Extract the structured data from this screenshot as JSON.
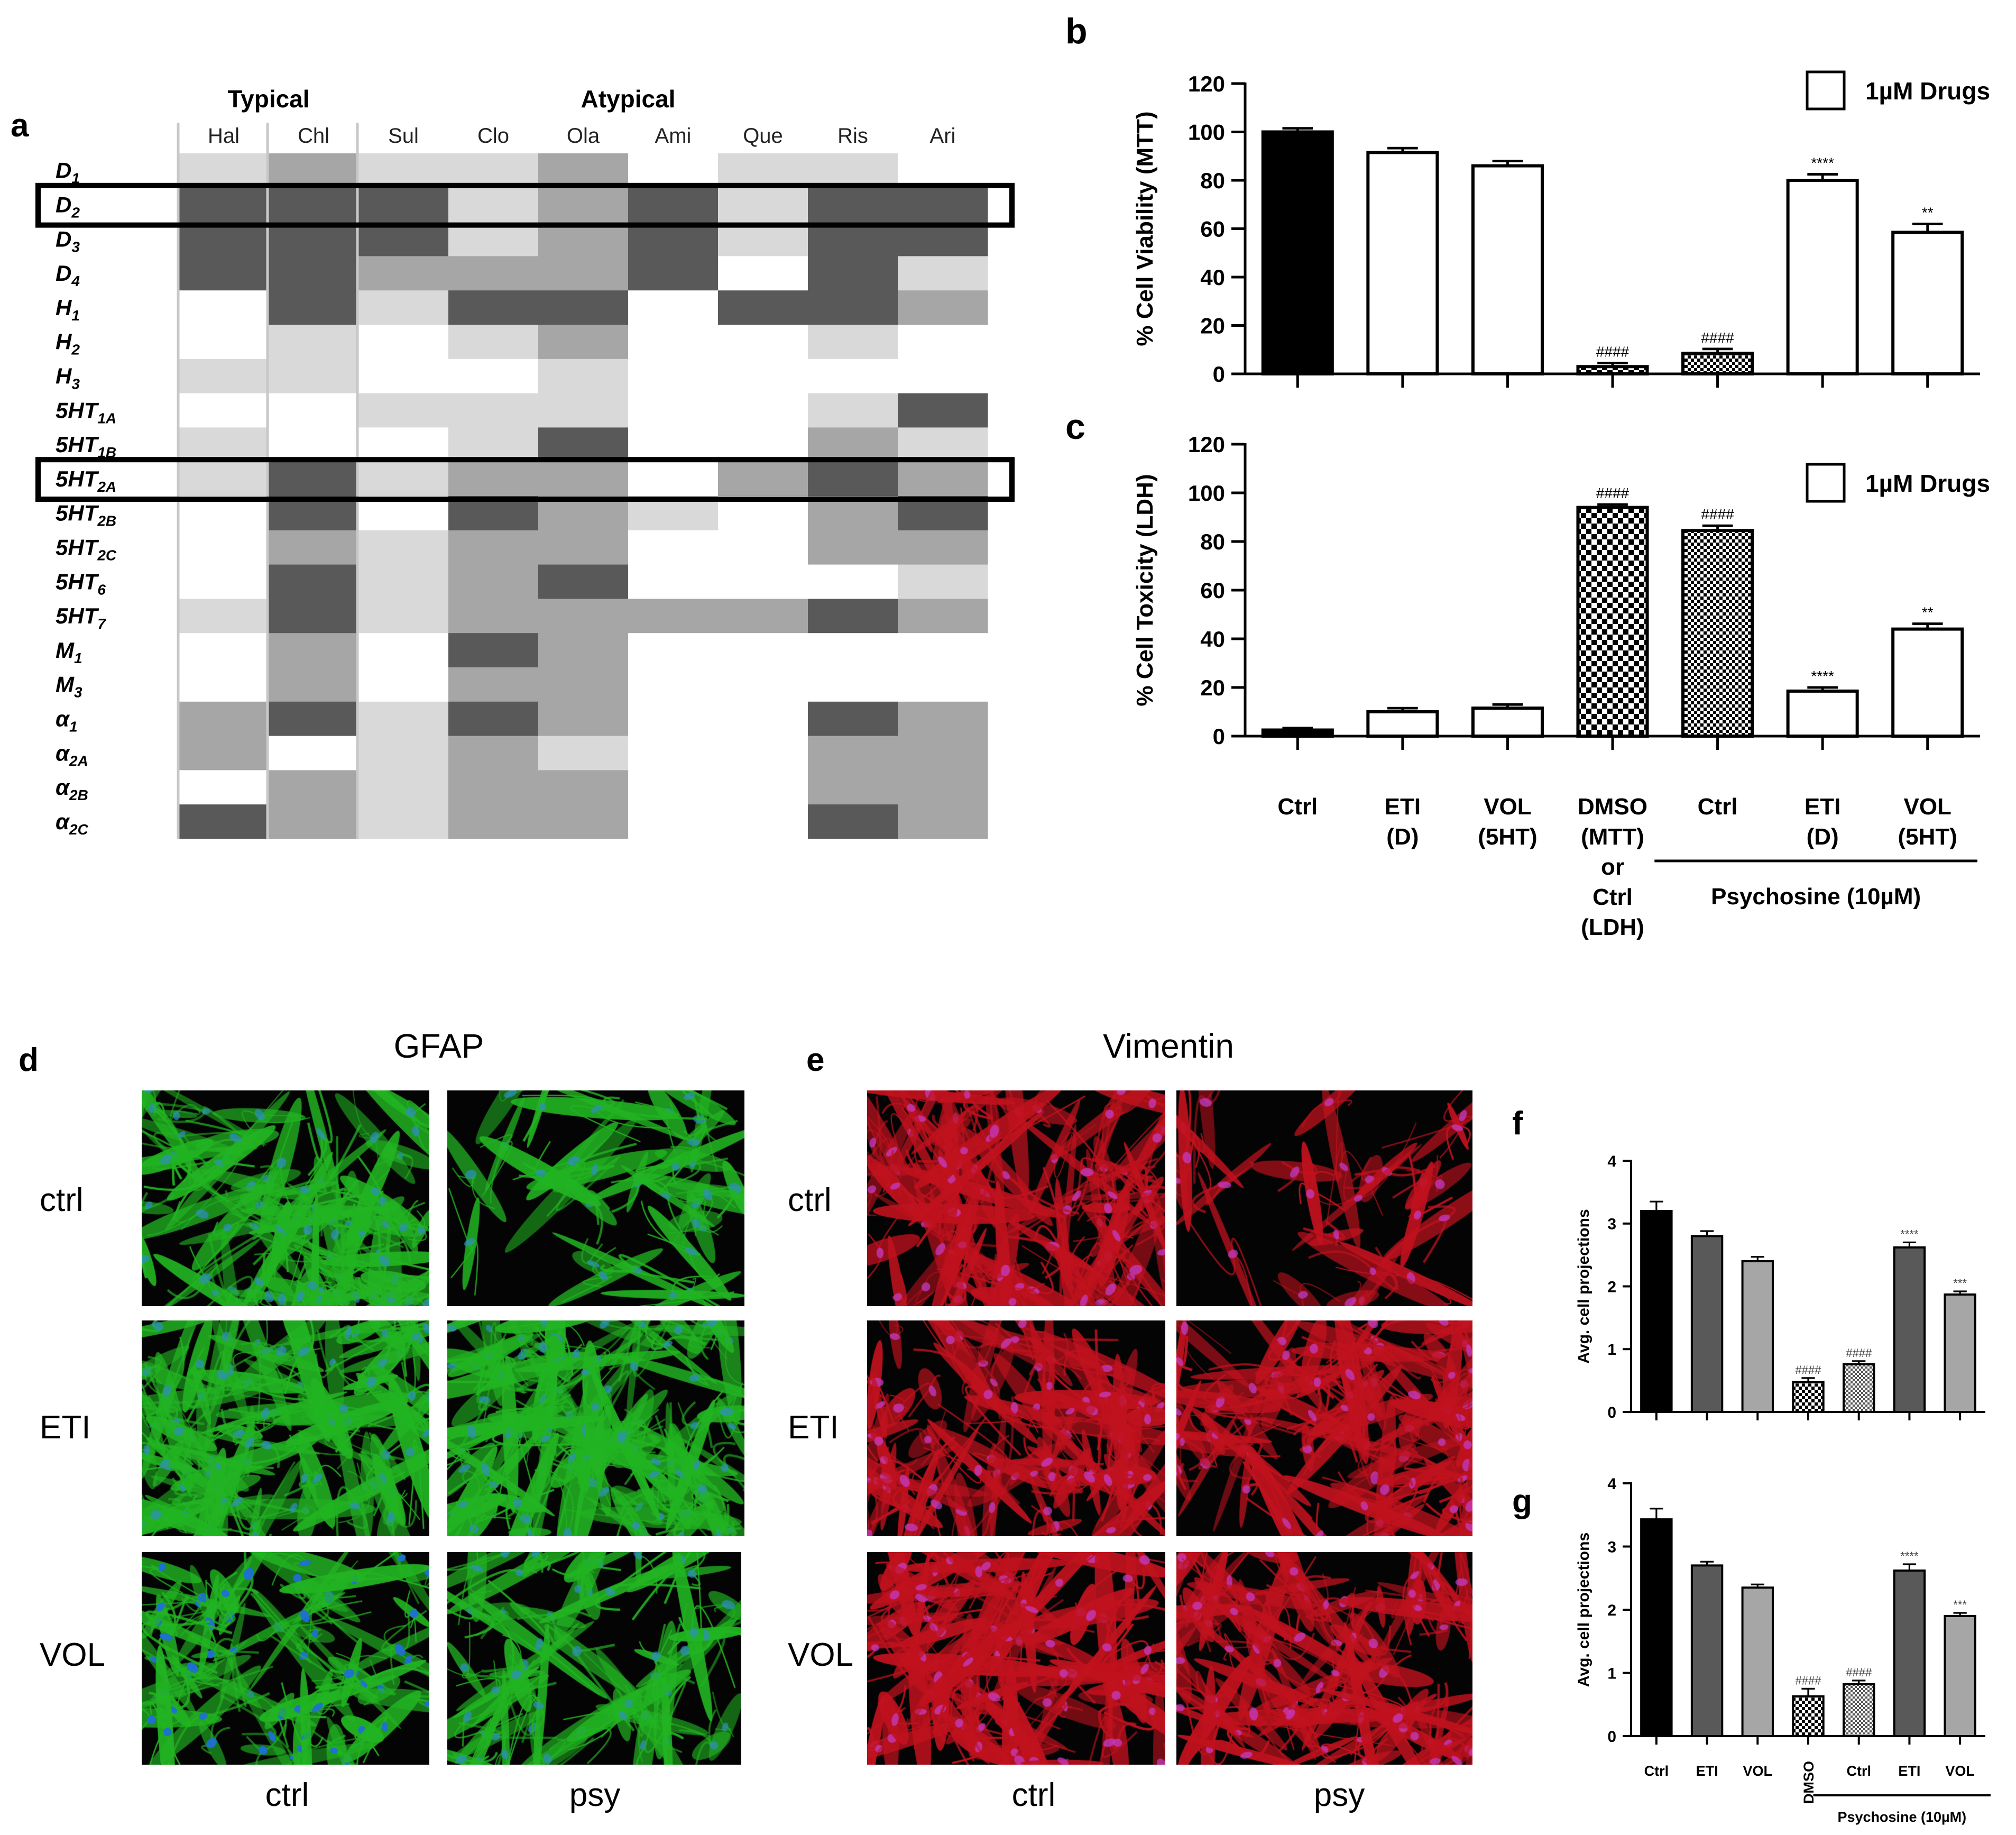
{
  "panel_labels": {
    "a": "a",
    "b": "b",
    "c": "c",
    "d": "d",
    "e": "e",
    "f": "f",
    "g": "g"
  },
  "palette": {
    "dark": "#595959",
    "medium": "#a6a6a6",
    "light": "#d9d9d9",
    "none": "#ffffff",
    "black": "#000000",
    "gfap_green": "#22b422",
    "vimentin_red": "#c0121e",
    "nuclei_blue": "#2c52d6"
  },
  "chart_data": [
    {
      "type": "heatmap",
      "panel": "a",
      "group_headers": [
        {
          "label": "Typical",
          "span": [
            "Hal",
            "Chl"
          ]
        },
        {
          "label": "Atypical",
          "span": [
            "Sul",
            "Clo",
            "Ola",
            "Ami",
            "Que",
            "Ris",
            "Ari"
          ]
        }
      ],
      "columns": [
        "Hal",
        "Chl",
        "Sul",
        "Clo",
        "Ola",
        "Ami",
        "Que",
        "Ris",
        "Ari"
      ],
      "rows": [
        {
          "base": "D",
          "sub": "1"
        },
        {
          "base": "D",
          "sub": "2"
        },
        {
          "base": "D",
          "sub": "3"
        },
        {
          "base": "D",
          "sub": "4"
        },
        {
          "base": "H",
          "sub": "1"
        },
        {
          "base": "H",
          "sub": "2"
        },
        {
          "base": "H",
          "sub": "3"
        },
        {
          "base": "5HT",
          "sub": "1A"
        },
        {
          "base": "5HT",
          "sub": "1B"
        },
        {
          "base": "5HT",
          "sub": "2A"
        },
        {
          "base": "5HT",
          "sub": "2B"
        },
        {
          "base": "5HT",
          "sub": "2C"
        },
        {
          "base": "5HT",
          "sub": "6"
        },
        {
          "base": "5HT",
          "sub": "7"
        },
        {
          "base": "M",
          "sub": "1"
        },
        {
          "base": "M",
          "sub": "3"
        },
        {
          "base": "α",
          "sub": "1"
        },
        {
          "base": "α",
          "sub": "2A"
        },
        {
          "base": "α",
          "sub": "2B"
        },
        {
          "base": "α",
          "sub": "2C"
        }
      ],
      "levels_legend": {
        "3": "dark",
        "2": "medium",
        "1": "light",
        "0": "none"
      },
      "values": [
        [
          1,
          2,
          1,
          1,
          2,
          0,
          1,
          1,
          0
        ],
        [
          3,
          3,
          3,
          1,
          2,
          3,
          1,
          3,
          3
        ],
        [
          3,
          3,
          3,
          1,
          2,
          3,
          1,
          3,
          3
        ],
        [
          3,
          3,
          2,
          2,
          2,
          3,
          0,
          3,
          1
        ],
        [
          0,
          3,
          1,
          3,
          3,
          0,
          3,
          3,
          2
        ],
        [
          0,
          1,
          0,
          1,
          2,
          0,
          0,
          1,
          0
        ],
        [
          1,
          1,
          0,
          0,
          1,
          0,
          0,
          0,
          0
        ],
        [
          0,
          0,
          1,
          1,
          1,
          0,
          0,
          1,
          3
        ],
        [
          1,
          0,
          0,
          1,
          3,
          0,
          0,
          2,
          1
        ],
        [
          1,
          3,
          1,
          2,
          2,
          0,
          2,
          3,
          2
        ],
        [
          0,
          3,
          0,
          3,
          2,
          1,
          0,
          2,
          3
        ],
        [
          0,
          2,
          1,
          2,
          2,
          0,
          0,
          2,
          2
        ],
        [
          0,
          3,
          1,
          2,
          3,
          0,
          0,
          0,
          1
        ],
        [
          1,
          3,
          1,
          2,
          2,
          2,
          2,
          3,
          2
        ],
        [
          0,
          2,
          0,
          3,
          2,
          0,
          0,
          0,
          0
        ],
        [
          0,
          2,
          0,
          2,
          2,
          0,
          0,
          0,
          0
        ],
        [
          2,
          3,
          1,
          3,
          2,
          0,
          0,
          3,
          2
        ],
        [
          2,
          0,
          1,
          2,
          1,
          0,
          0,
          2,
          2
        ],
        [
          0,
          2,
          1,
          2,
          2,
          0,
          0,
          2,
          2
        ],
        [
          3,
          2,
          1,
          2,
          2,
          0,
          0,
          3,
          2
        ]
      ],
      "highlighted_rows": [
        {
          "base": "D",
          "sub": "2"
        },
        {
          "base": "5HT",
          "sub": "2A"
        }
      ]
    },
    {
      "type": "bar",
      "panel": "b",
      "ylabel": "% Cell Viability (MTT)",
      "ylim": [
        0,
        120
      ],
      "yticks": [
        0,
        20,
        40,
        60,
        80,
        100,
        120
      ],
      "legend": "1µM Drugs",
      "values": [
        100,
        91.5,
        86,
        3,
        8.5,
        80,
        58.5
      ],
      "errors": [
        1.5,
        1.8,
        2,
        1.5,
        1.8,
        2.5,
        3.5
      ],
      "annotations": [
        "",
        "",
        "",
        "####",
        "####",
        "****",
        "**"
      ],
      "fills": [
        "black",
        "white",
        "white",
        "checker",
        "checker_fine",
        "white",
        "white"
      ]
    },
    {
      "type": "bar",
      "panel": "c",
      "ylabel": "% Cell Toxicity (LDH)",
      "ylim": [
        0,
        120
      ],
      "yticks": [
        0,
        20,
        40,
        60,
        80,
        100,
        120
      ],
      "legend": "1µM Drugs",
      "values": [
        2.5,
        10,
        11.5,
        94,
        84.5,
        18.5,
        44
      ],
      "errors": [
        0.8,
        1.5,
        1.5,
        1.2,
        2,
        1.5,
        2.2
      ],
      "annotations": [
        "",
        "",
        "",
        "####",
        "####",
        "****",
        "**"
      ],
      "fills": [
        "black",
        "white",
        "white",
        "checker",
        "checker_fine",
        "white",
        "white"
      ],
      "categories": [
        [
          "Ctrl"
        ],
        [
          "ETI",
          "(D)"
        ],
        [
          "VOL",
          "(5HT)"
        ],
        [
          "DMSO",
          "(MTT)",
          "or",
          "Ctrl",
          "(LDH)"
        ],
        [
          "Ctrl"
        ],
        [
          "ETI",
          "(D)"
        ],
        [
          "VOL",
          "(5HT)"
        ]
      ],
      "group_label": "Psychosine (10µM)"
    },
    {
      "type": "bar",
      "panel": "f",
      "ylabel": "Avg. cell projections",
      "ylim": [
        0,
        4
      ],
      "yticks": [
        0,
        1,
        2,
        3,
        4
      ],
      "values": [
        3.2,
        2.8,
        2.4,
        0.48,
        0.76,
        2.62,
        1.87
      ],
      "errors": [
        0.15,
        0.08,
        0.07,
        0.06,
        0.05,
        0.08,
        0.05
      ],
      "annotations": [
        "",
        "",
        "",
        "####",
        "####",
        "****",
        "***"
      ],
      "fills": [
        "#000000",
        "#595959",
        "#a6a6a6",
        "checker",
        "checker_fine",
        "#595959",
        "#a6a6a6"
      ]
    },
    {
      "type": "bar",
      "panel": "g",
      "ylabel": "Avg. cell projections",
      "ylim": [
        0,
        4
      ],
      "yticks": [
        0,
        1,
        2,
        3,
        4
      ],
      "values": [
        3.43,
        2.7,
        2.35,
        0.63,
        0.82,
        2.62,
        1.9
      ],
      "errors": [
        0.17,
        0.06,
        0.05,
        0.12,
        0.06,
        0.1,
        0.05
      ],
      "annotations": [
        "",
        "",
        "",
        "####",
        "####",
        "****",
        "***"
      ],
      "fills": [
        "#000000",
        "#595959",
        "#a6a6a6",
        "checker",
        "checker_fine",
        "#595959",
        "#a6a6a6"
      ],
      "categories": [
        "Ctrl",
        "ETI",
        "VOL",
        "DMSO",
        "Ctrl",
        "ETI",
        "VOL"
      ],
      "group_label": "Psychosine (10µM)"
    }
  ],
  "microscopy": {
    "d": {
      "title": "GFAP",
      "row_labels": [
        "ctrl",
        "ETI",
        "VOL"
      ],
      "col_labels": [
        "ctrl",
        "psy"
      ],
      "stain_color": "gfap_green"
    },
    "e": {
      "title": "Vimentin",
      "row_labels": [
        "ctrl",
        "ETI",
        "VOL"
      ],
      "col_labels": [
        "ctrl",
        "psy"
      ],
      "stain_color": "vimentin_red"
    }
  }
}
